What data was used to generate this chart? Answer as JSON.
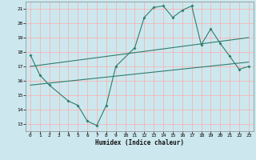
{
  "xlabel": "Humidex (Indice chaleur)",
  "bg_color": "#cce8ee",
  "grid_color": "#ffaaaa",
  "line_color": "#2e7d6e",
  "xlim": [
    -0.5,
    23.5
  ],
  "ylim": [
    12.5,
    21.5
  ],
  "xticks": [
    0,
    1,
    2,
    3,
    4,
    5,
    6,
    7,
    8,
    9,
    10,
    11,
    12,
    13,
    14,
    15,
    16,
    17,
    18,
    19,
    20,
    21,
    22,
    23
  ],
  "yticks": [
    13,
    14,
    15,
    16,
    17,
    18,
    19,
    20,
    21
  ],
  "line1_x": [
    0,
    1,
    2,
    4,
    5,
    6,
    7,
    8,
    9,
    11,
    12,
    13,
    14,
    15,
    16,
    17,
    18,
    19,
    20,
    21,
    22,
    23
  ],
  "line1_y": [
    17.8,
    16.4,
    15.7,
    14.6,
    14.3,
    13.2,
    12.9,
    14.3,
    17.0,
    18.3,
    20.4,
    21.1,
    21.2,
    20.4,
    20.9,
    21.2,
    18.5,
    19.6,
    18.6,
    17.7,
    16.8,
    17.0
  ],
  "line2_x": [
    0,
    23
  ],
  "line2_y": [
    17.0,
    19.0
  ],
  "line3_x": [
    0,
    23
  ],
  "line3_y": [
    15.7,
    17.3
  ]
}
